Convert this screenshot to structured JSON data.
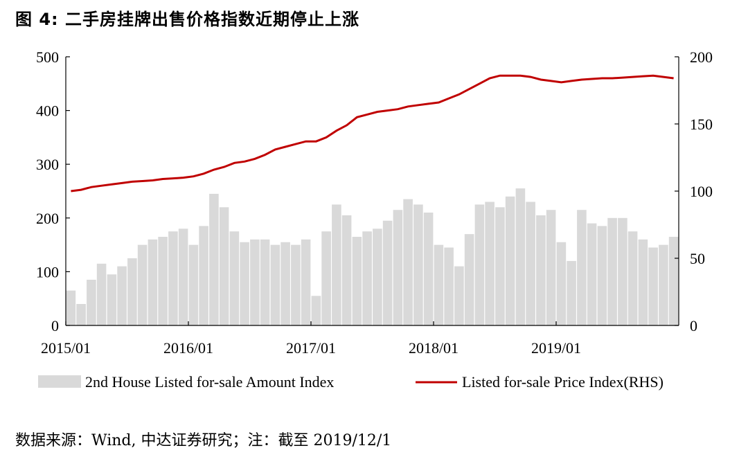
{
  "figure_title": "图 4: 二手房挂牌出售价格指数近期停止上涨",
  "source_note": "数据来源：Wind, 中达证券研究；注：截至 2019/12/1",
  "chart_data": {
    "type": "bar+line",
    "title": "图 4: 二手房挂牌出售价格指数近期停止上涨",
    "x_tick_labels": [
      "2015/01",
      "2016/01",
      "2017/01",
      "2018/01",
      "2019/01"
    ],
    "x_range": [
      "2015/01",
      "2019/12"
    ],
    "y_left": {
      "range": [
        0,
        500
      ],
      "ticks": [
        0,
        100,
        200,
        300,
        400,
        500
      ]
    },
    "y_right": {
      "range": [
        0,
        200
      ],
      "ticks": [
        0,
        50,
        100,
        150,
        200
      ]
    },
    "grid": false,
    "legend_position": "bottom",
    "colors": {
      "bars": "#d9d9d9",
      "line": "#c00000"
    },
    "series": [
      {
        "name": "2nd House Listed for-sale Amount Index",
        "type": "bar",
        "axis": "left",
        "x": [
          "2015/01",
          "2015/02",
          "2015/03",
          "2015/04",
          "2015/05",
          "2015/06",
          "2015/07",
          "2015/08",
          "2015/09",
          "2015/10",
          "2015/11",
          "2015/12",
          "2016/01",
          "2016/02",
          "2016/03",
          "2016/04",
          "2016/05",
          "2016/06",
          "2016/07",
          "2016/08",
          "2016/09",
          "2016/10",
          "2016/11",
          "2016/12",
          "2017/01",
          "2017/02",
          "2017/03",
          "2017/04",
          "2017/05",
          "2017/06",
          "2017/07",
          "2017/08",
          "2017/09",
          "2017/10",
          "2017/11",
          "2017/12",
          "2018/01",
          "2018/02",
          "2018/03",
          "2018/04",
          "2018/05",
          "2018/06",
          "2018/07",
          "2018/08",
          "2018/09",
          "2018/10",
          "2018/11",
          "2018/12",
          "2019/01",
          "2019/02",
          "2019/03",
          "2019/04",
          "2019/05",
          "2019/06",
          "2019/07",
          "2019/08",
          "2019/09",
          "2019/10",
          "2019/11",
          "2019/12"
        ],
        "values": [
          65,
          40,
          85,
          115,
          95,
          110,
          125,
          150,
          160,
          165,
          175,
          180,
          150,
          185,
          245,
          220,
          175,
          155,
          160,
          160,
          150,
          155,
          150,
          160,
          55,
          175,
          225,
          205,
          165,
          175,
          180,
          195,
          215,
          235,
          225,
          210,
          150,
          145,
          110,
          170,
          225,
          230,
          220,
          240,
          255,
          230,
          205,
          215,
          155,
          120,
          215,
          190,
          185,
          200,
          200,
          175,
          160,
          145,
          150,
          165
        ]
      },
      {
        "name": "Listed for-sale Price Index(RHS)",
        "type": "line",
        "axis": "right",
        "x": [
          "2015/01",
          "2015/02",
          "2015/03",
          "2015/04",
          "2015/05",
          "2015/06",
          "2015/07",
          "2015/08",
          "2015/09",
          "2015/10",
          "2015/11",
          "2015/12",
          "2016/01",
          "2016/02",
          "2016/03",
          "2016/04",
          "2016/05",
          "2016/06",
          "2016/07",
          "2016/08",
          "2016/09",
          "2016/10",
          "2016/11",
          "2016/12",
          "2017/01",
          "2017/02",
          "2017/03",
          "2017/04",
          "2017/05",
          "2017/06",
          "2017/07",
          "2017/08",
          "2017/09",
          "2017/10",
          "2017/11",
          "2017/12",
          "2018/01",
          "2018/02",
          "2018/03",
          "2018/04",
          "2018/05",
          "2018/06",
          "2018/07",
          "2018/08",
          "2018/09",
          "2018/10",
          "2018/11",
          "2018/12",
          "2019/01",
          "2019/02",
          "2019/03",
          "2019/04",
          "2019/05",
          "2019/06",
          "2019/07",
          "2019/08",
          "2019/09",
          "2019/10",
          "2019/11",
          "2019/12"
        ],
        "values": [
          100,
          101,
          103,
          104,
          105,
          106,
          107,
          107.5,
          108,
          109,
          109.5,
          110,
          111,
          113,
          116,
          118,
          121,
          122,
          124,
          127,
          131,
          133,
          135,
          137,
          137,
          140,
          145,
          149,
          155,
          157,
          159,
          160,
          161,
          163,
          164,
          165,
          166,
          169,
          172,
          176,
          180,
          184,
          186,
          186,
          186,
          185,
          183,
          182,
          181,
          182,
          183,
          183.5,
          184,
          184,
          184.5,
          185,
          185.5,
          186,
          185,
          184
        ]
      }
    ]
  }
}
